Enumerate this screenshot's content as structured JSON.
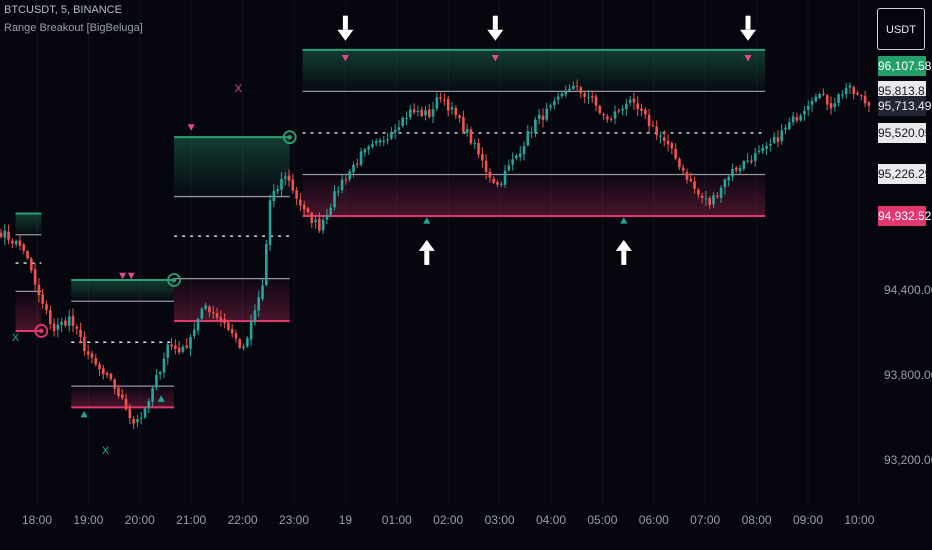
{
  "header": {
    "symbol_line": "BTCUSDT, 5, BINANCE",
    "indicator_name": "Range Breakout [BigBeluga]"
  },
  "currency_button": "USDT",
  "colors": {
    "background": "#06060f",
    "up_candle": "#26a69a",
    "down_candle": "#ef5350",
    "range_top": "#2aa072",
    "range_bottom": "#e2366e",
    "mid_line": "#b9bcc4",
    "signal_up": "#26a69a",
    "signal_down": "#e04b8c"
  },
  "price_tags": [
    {
      "label": "96,107.58",
      "value": 96107.58,
      "style": "green"
    },
    {
      "label": "95,813.81",
      "value": 95813.81,
      "style": "light"
    },
    {
      "label": "95,713.49",
      "value": 95713.49,
      "style": "current"
    },
    {
      "label": "95,520.05",
      "value": 95520.05,
      "style": "light"
    },
    {
      "label": "95,226.29",
      "value": 95226.29,
      "style": "light"
    },
    {
      "label": "94,932.52",
      "value": 94932.52,
      "style": "pink"
    }
  ],
  "chart_data": {
    "type": "candlestick",
    "x_ticks": [
      "18:00",
      "19:00",
      "20:00",
      "21:00",
      "22:00",
      "23:00",
      "19",
      "01:00",
      "02:00",
      "03:00",
      "04:00",
      "05:00",
      "06:00",
      "07:00",
      "08:00",
      "09:00",
      "10:00"
    ],
    "y_ticks": [
      {
        "label": "94,400.00",
        "value": 94400
      },
      {
        "label": "93,800.00",
        "value": 93800
      },
      {
        "label": "93,200.00",
        "value": 93200
      }
    ],
    "ylim": [
      92960,
      96460
    ],
    "close_anchors": [
      [
        0,
        94820
      ],
      [
        6,
        94700
      ],
      [
        10,
        94360
      ],
      [
        14,
        94130
      ],
      [
        18,
        94210
      ],
      [
        24,
        93900
      ],
      [
        30,
        93720
      ],
      [
        35,
        93480
      ],
      [
        38,
        93540
      ],
      [
        44,
        94020
      ],
      [
        48,
        93980
      ],
      [
        54,
        94300
      ],
      [
        59,
        94180
      ],
      [
        64,
        93980
      ],
      [
        69,
        94440
      ],
      [
        71,
        95030
      ],
      [
        75,
        95230
      ],
      [
        80,
        94960
      ],
      [
        84,
        94860
      ],
      [
        90,
        95180
      ],
      [
        95,
        95360
      ],
      [
        100,
        95450
      ],
      [
        104,
        95570
      ],
      [
        108,
        95670
      ],
      [
        113,
        95650
      ],
      [
        116,
        95790
      ],
      [
        123,
        95520
      ],
      [
        128,
        95260
      ],
      [
        131,
        95150
      ],
      [
        136,
        95360
      ],
      [
        141,
        95600
      ],
      [
        146,
        95710
      ],
      [
        150,
        95850
      ],
      [
        155,
        95780
      ],
      [
        160,
        95600
      ],
      [
        165,
        95740
      ],
      [
        168,
        95680
      ],
      [
        174,
        95500
      ],
      [
        179,
        95300
      ],
      [
        184,
        95080
      ],
      [
        187,
        95020
      ],
      [
        192,
        95230
      ],
      [
        197,
        95330
      ],
      [
        202,
        95400
      ],
      [
        206,
        95520
      ],
      [
        211,
        95670
      ],
      [
        215,
        95810
      ],
      [
        219,
        95720
      ],
      [
        223,
        95840
      ],
      [
        227,
        95760
      ],
      [
        229,
        95713
      ]
    ],
    "ranges": [
      {
        "start": "17:35",
        "end": "18:05",
        "top": 94950,
        "upper": 94800,
        "mid": 94600,
        "lower": 94400,
        "bottom": 94120
      },
      {
        "start": "18:40",
        "end": "20:40",
        "top": 94480,
        "upper": 94330,
        "mid": 94040,
        "lower": 93730,
        "bottom": 93580
      },
      {
        "start": "20:40",
        "end": "22:55",
        "top": 95490,
        "upper": 95070,
        "mid": 94790,
        "lower": 94490,
        "bottom": 94190
      },
      {
        "start": "23:10",
        "end": "08:10",
        "top": 96107.58,
        "upper": 95813.81,
        "mid": 95520.05,
        "lower": 95226.29,
        "bottom": 94932.52
      }
    ],
    "breakout_circles": [
      {
        "time": "18:05",
        "price": 94120,
        "dir": "down"
      },
      {
        "time": "20:40",
        "price": 94480,
        "dir": "up"
      },
      {
        "time": "22:55",
        "price": 95490,
        "dir": "up"
      }
    ],
    "signals": [
      {
        "time": "18:55",
        "price": 93530,
        "kind": "triangle-up"
      },
      {
        "time": "19:40",
        "price": 94510,
        "kind": "triangle-down"
      },
      {
        "time": "19:50",
        "price": 94510,
        "kind": "triangle-down"
      },
      {
        "time": "20:25",
        "price": 93640,
        "kind": "triangle-up"
      },
      {
        "time": "21:00",
        "price": 95560,
        "kind": "triangle-down"
      },
      {
        "time": "00:00",
        "price": 96050,
        "kind": "triangle-down"
      },
      {
        "time": "01:35",
        "price": 94900,
        "kind": "triangle-up"
      },
      {
        "time": "02:55",
        "price": 96050,
        "kind": "triangle-down"
      },
      {
        "time": "05:25",
        "price": 94900,
        "kind": "triangle-up"
      },
      {
        "time": "07:50",
        "price": 96050,
        "kind": "triangle-down"
      }
    ],
    "arrows": [
      {
        "time": "00:00",
        "price": 96250,
        "dir": "down"
      },
      {
        "time": "01:35",
        "price": 94700,
        "dir": "up"
      },
      {
        "time": "02:55",
        "price": 96250,
        "dir": "down"
      },
      {
        "time": "05:25",
        "price": 94700,
        "dir": "up"
      },
      {
        "time": "07:50",
        "price": 96250,
        "dir": "down"
      }
    ],
    "x_marks": [
      {
        "time": "17:35",
        "price": 94050,
        "label": "X",
        "color": "green"
      },
      {
        "time": "19:20",
        "price": 93250,
        "label": "X",
        "color": "green"
      },
      {
        "time": "21:55",
        "price": 95810,
        "label": "X",
        "color": "pink"
      }
    ]
  }
}
